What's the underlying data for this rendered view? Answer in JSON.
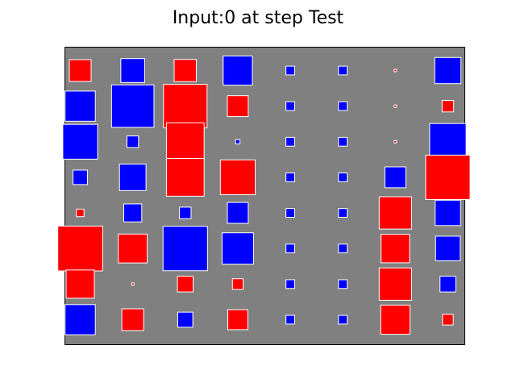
{
  "chart_data": {
    "type": "heatmap",
    "style": "hinton",
    "title": "Input:0 at step Test",
    "rows": 8,
    "cols": 8,
    "max_abs": 1.0,
    "axes_visible": false,
    "colors": {
      "positive": "#ff0000",
      "negative": "#0000ff",
      "background": "#808080",
      "edge": "#ffffff",
      "frame": "#000000"
    },
    "values": [
      [
        0.25,
        -0.3,
        0.26,
        -0.45,
        -0.04,
        -0.04,
        0.0,
        -0.36
      ],
      [
        -0.48,
        -0.95,
        1.0,
        0.23,
        -0.04,
        -0.04,
        0.0,
        0.07
      ],
      [
        -0.64,
        -0.07,
        0.75,
        -0.01,
        -0.04,
        -0.04,
        0.0,
        -0.7
      ],
      [
        -0.11,
        -0.37,
        0.75,
        0.64,
        -0.04,
        -0.04,
        -0.23,
        1.04
      ],
      [
        0.03,
        -0.17,
        -0.07,
        -0.23,
        -0.04,
        -0.04,
        0.55,
        -0.34
      ],
      [
        1.06,
        0.44,
        -1.04,
        -0.52,
        -0.04,
        -0.04,
        0.43,
        -0.32
      ],
      [
        0.42,
        0.0,
        0.13,
        0.06,
        -0.04,
        -0.04,
        0.55,
        -0.13
      ],
      [
        -0.48,
        0.25,
        -0.12,
        0.21,
        -0.04,
        -0.04,
        0.45,
        0.06
      ]
    ]
  }
}
